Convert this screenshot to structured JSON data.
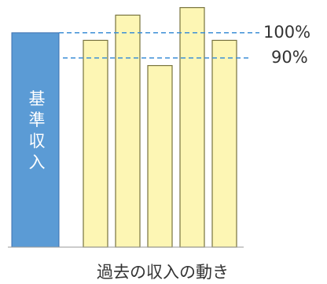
{
  "chart_data": {
    "type": "bar",
    "x_label": "過去の収入の動き",
    "base": {
      "label": "基準収入",
      "value": 100,
      "color": "#5b9bd5"
    },
    "categories": [
      null,
      null,
      null,
      null,
      null
    ],
    "values": [
      97,
      107,
      87,
      110,
      97
    ],
    "color": "#fdf6b4",
    "reference_lines": [
      {
        "value": 100,
        "label": "100%",
        "color": "#3d8fd6"
      },
      {
        "value": 90,
        "label": "90%",
        "color": "#3d8fd6"
      }
    ],
    "ylim": [
      15,
      113
    ]
  }
}
